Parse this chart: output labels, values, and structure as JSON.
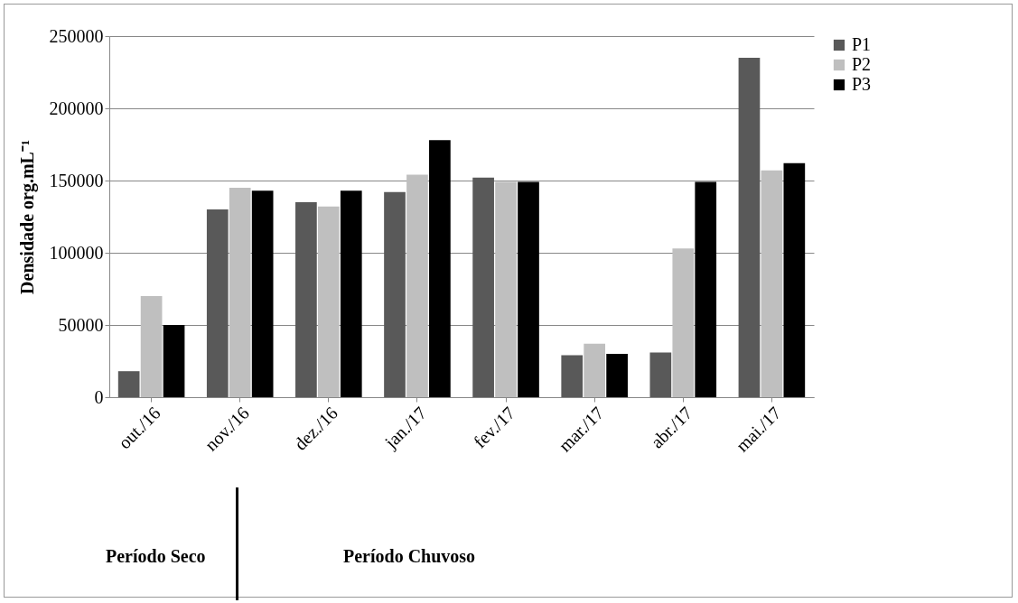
{
  "chart_data": {
    "type": "bar",
    "ylabel": "Densidade org.mL⁻¹",
    "categories": [
      "out./16",
      "nov./16",
      "dez./16",
      "jan./17",
      "fev./17",
      "mar./17",
      "abr./17",
      "mai./17"
    ],
    "series": [
      {
        "name": "P1",
        "color": "#595959",
        "values": [
          18000,
          130000,
          135000,
          142000,
          152000,
          29000,
          31000,
          235000
        ]
      },
      {
        "name": "P2",
        "color": "#bfbfbf",
        "values": [
          70000,
          145000,
          132000,
          154000,
          149000,
          37000,
          103000,
          157000
        ]
      },
      {
        "name": "P3",
        "color": "#000000",
        "values": [
          50000,
          143000,
          143000,
          178000,
          149000,
          30000,
          149000,
          162000
        ]
      }
    ],
    "ylim": [
      0,
      250000
    ],
    "yticks": [
      0,
      50000,
      100000,
      150000,
      200000,
      250000
    ],
    "grid": "y",
    "legend": "right",
    "annotations": [
      "Período Seco",
      "Período Chuvoso"
    ]
  }
}
